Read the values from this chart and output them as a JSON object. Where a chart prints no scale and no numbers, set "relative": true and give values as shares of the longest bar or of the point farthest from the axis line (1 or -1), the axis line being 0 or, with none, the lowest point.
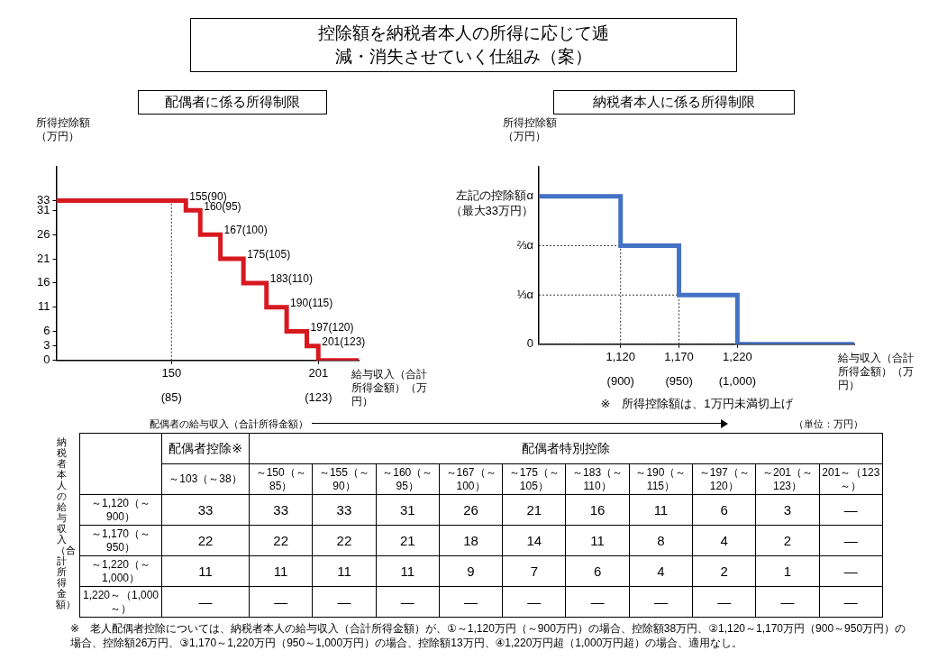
{
  "chart_data": [
    {
      "type": "step",
      "title": "控除額を納税者本人の所得に応じて逓減・消失させていく仕組み（案）",
      "subtitle": "配偶者に係る所得制限",
      "xlabel": "給与収入（合計所得金額）（万円）",
      "ylabel": "所得控除額（万円）",
      "x": [
        110,
        155,
        160,
        167,
        175,
        183,
        190,
        197,
        201,
        215
      ],
      "values": [
        33,
        31,
        26,
        21,
        16,
        11,
        6,
        3,
        0,
        0
      ],
      "color": "#d71920",
      "xlim": [
        110,
        215
      ],
      "xticks": [
        150,
        201
      ],
      "x2lim": [
        55.2,
        133.4
      ],
      "x2ticks": [
        {
          "value": 85,
          "label": "(85)"
        },
        {
          "value": 123,
          "label": "(123)"
        }
      ],
      "ylim": [
        0,
        40
      ],
      "yticks": [
        0,
        3,
        6,
        11,
        16,
        21,
        26,
        31,
        33
      ],
      "grid": false,
      "legend": false,
      "marker": "none",
      "ref_lines": [
        {
          "axis": "x",
          "value": 150,
          "line_style": "dotted",
          "color": "#333333"
        }
      ],
      "annotations": [
        {
          "text": "155(90)",
          "x": 155,
          "y": 33
        },
        {
          "text": "160(95)",
          "x": 160,
          "y": 31
        },
        {
          "text": "167(100)",
          "x": 167,
          "y": 26
        },
        {
          "text": "175(105)",
          "x": 175,
          "y": 21
        },
        {
          "text": "183(110)",
          "x": 183,
          "y": 16
        },
        {
          "text": "190(115)",
          "x": 190,
          "y": 11
        },
        {
          "text": "197(120)",
          "x": 197,
          "y": 6
        },
        {
          "text": "201(123)",
          "x": 201,
          "y": 3
        }
      ]
    },
    {
      "type": "step",
      "title": "納税者本人に係る所得制限",
      "xlabel": "給与収入（合計所得金額）（万円）",
      "ylabel": "所得控除額（万円）",
      "x": [
        1050,
        1120,
        1170,
        1220,
        1320
      ],
      "values": [
        1,
        0.667,
        0.333,
        0,
        0
      ],
      "color": "#4472c4",
      "relative": true,
      "xlim": [
        1050,
        1320
      ],
      "xticks": [
        {
          "value": 1120,
          "label": "1,120"
        },
        {
          "value": 1170,
          "label": "1,170"
        },
        {
          "value": 1220,
          "label": "1,220"
        }
      ],
      "x2lim": [
        830,
        1100
      ],
      "x2ticks": [
        {
          "value": 900,
          "label": "(900)"
        },
        {
          "value": 950,
          "label": "(950)"
        },
        {
          "value": 1000,
          "label": "(1,000)"
        }
      ],
      "grid": false,
      "legend": false,
      "marker": "none",
      "ref_lines": [
        {
          "axis": "x",
          "value": 1120,
          "line_style": "dotted",
          "color": "#333333"
        },
        {
          "axis": "x",
          "value": 1170,
          "line_style": "dotted",
          "color": "#333333"
        },
        {
          "axis": "y",
          "value": 0.667,
          "label": "⅔α",
          "line_style": "dotted",
          "color": "#333333"
        },
        {
          "axis": "y",
          "value": 0.333,
          "label": "⅓α",
          "line_style": "dotted",
          "color": "#333333"
        },
        {
          "axis": "y",
          "value": 0,
          "label": "0",
          "line_style": "dotted",
          "color": "#333333"
        }
      ],
      "annotations": [
        "※　所得控除額は、1万円未満切上げ",
        {
          "text": "左記の控除額α（最大33万円）",
          "x": 1050,
          "y": 1
        }
      ]
    },
    {
      "type": "heatmap",
      "xlabel": "配偶者の給与収入（合計所得金額）",
      "ylabel": "納税者本人の給与収入（合計所得金額）",
      "categories": [
        "～103（～38）",
        "～150（～85）",
        "～155（～90）",
        "～160（～95）",
        "～167（～100）",
        "～175（～105）",
        "～183（～110）",
        "～190（～115）",
        "～197（～120）",
        "～201（～123）",
        "201～（123～）"
      ],
      "y_categories": [
        "～1,120（～900）",
        "～1,170（～950）",
        "～1,220（～1,000）",
        "1,220～（1,000～）"
      ],
      "cells": [
        [
          33,
          33,
          33,
          31,
          26,
          21,
          16,
          11,
          6,
          3,
          null
        ],
        [
          22,
          22,
          22,
          21,
          18,
          14,
          11,
          8,
          4,
          2,
          null
        ],
        [
          11,
          11,
          11,
          11,
          9,
          7,
          6,
          4,
          2,
          1,
          null
        ],
        [
          null,
          null,
          null,
          null,
          null,
          null,
          null,
          null,
          null,
          null,
          null
        ]
      ],
      "cell_labels": [
        [
          "33",
          "33",
          "33",
          "31",
          "26",
          "21",
          "16",
          "11",
          "6",
          "3",
          "—"
        ],
        [
          "22",
          "22",
          "22",
          "21",
          "18",
          "14",
          "11",
          "8",
          "4",
          "2",
          "—"
        ],
        [
          "11",
          "11",
          "11",
          "11",
          "9",
          "7",
          "6",
          "4",
          "2",
          "1",
          "—"
        ],
        [
          "—",
          "—",
          "—",
          "—",
          "—",
          "—",
          "—",
          "—",
          "—",
          "—",
          "—"
        ]
      ],
      "annotations": [
        "配偶者控除※",
        "配偶者特別控除",
        "（単位：万円）",
        "※　老人配偶者控除については、納税者本人の給与収入（合計所得金額）が、①～1,120万円（～900万円）の場合、控除額38万円、②1,120～1,170万円（900～950万円）の場合、控除額26万円、③1,170～1,220万円（950～1,000万円）の場合、控除額13万円、④1,220万円超（1,000万円超）の場合、適用なし。"
      ]
    }
  ]
}
